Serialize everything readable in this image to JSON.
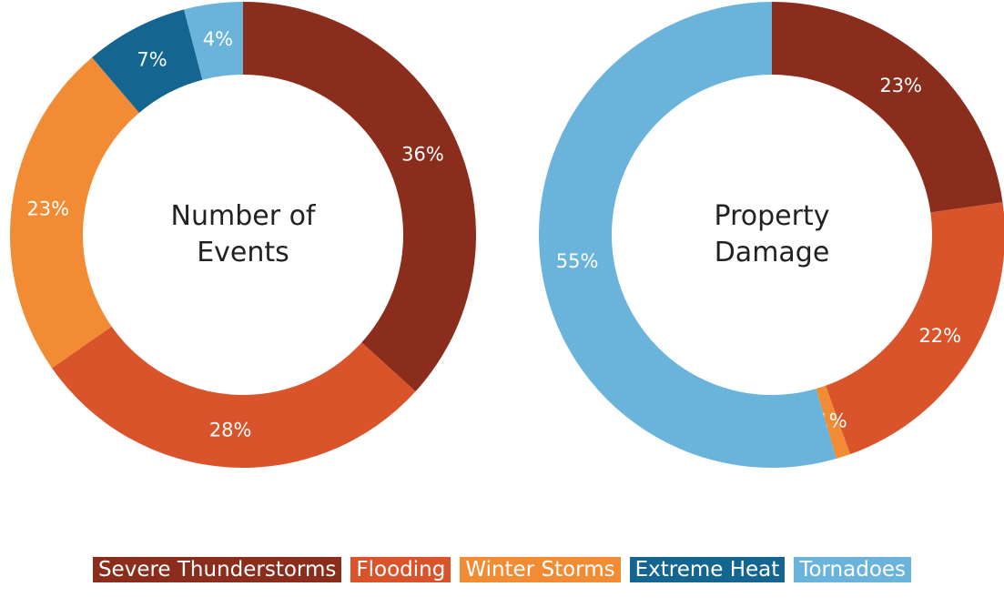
{
  "chart_data": [
    {
      "type": "pie",
      "title": "Number of Events",
      "categories": [
        "Severe Thunderstorms",
        "Flooding",
        "Winter Storms",
        "Extreme Heat",
        "Tornadoes"
      ],
      "values": [
        36,
        28,
        23,
        7,
        4
      ],
      "value_labels": [
        "36%",
        "28%",
        "23%",
        "7%",
        "4%"
      ],
      "colors": [
        "#8b2d1c",
        "#d9542b",
        "#f18c34",
        "#146590",
        "#6ab4dc"
      ]
    },
    {
      "type": "pie",
      "title": "Property Damage",
      "categories": [
        "Severe Thunderstorms",
        "Flooding",
        "Winter Storms",
        "Tornadoes"
      ],
      "values": [
        23,
        22,
        1,
        55
      ],
      "value_labels": [
        "23%",
        "22%",
        "1%",
        "55%"
      ],
      "colors": [
        "#8b2d1c",
        "#d9542b",
        "#f18c34",
        "#6ab4dc"
      ]
    }
  ]
}
